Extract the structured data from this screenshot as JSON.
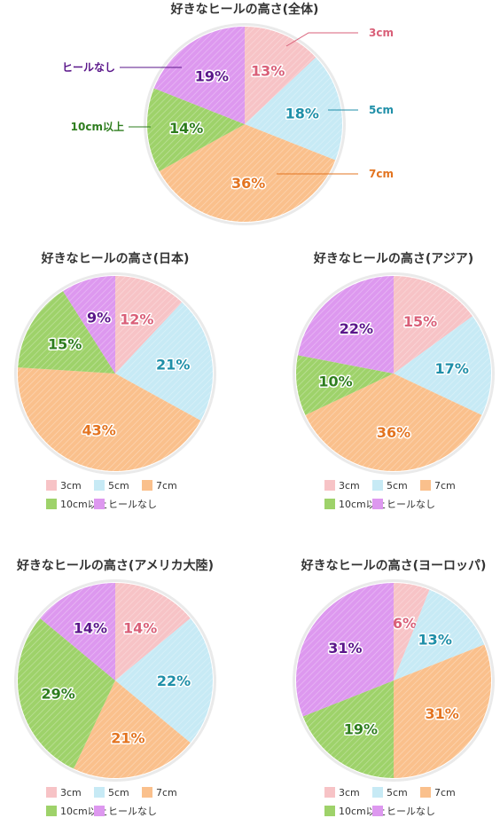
{
  "categories": [
    "3cm",
    "5cm",
    "7cm",
    "10cm以上",
    "ヒールなし"
  ],
  "colors": {
    "3cm": "#f7c3c6",
    "5cm": "#c7eaf5",
    "7cm": "#fac08c",
    "10cm以上": "#9ed26a",
    "ヒールなし": "#dd98ef"
  },
  "label_colors": {
    "3cm": "#d95f78",
    "5cm": "#1f8fa8",
    "7cm": "#e37420",
    "10cm以上": "#2e7d1e",
    "ヒールなし": "#5a168a"
  },
  "chart_data": [
    {
      "type": "pie",
      "title": "好きなヒールの高さ(全体)",
      "categories": [
        "3cm",
        "5cm",
        "7cm",
        "10cm以上",
        "ヒールなし"
      ],
      "values": [
        13,
        18,
        36,
        14,
        19
      ],
      "legend": "callouts"
    },
    {
      "type": "pie",
      "title": "好きなヒールの高さ(日本)",
      "categories": [
        "3cm",
        "5cm",
        "7cm",
        "10cm以上",
        "ヒールなし"
      ],
      "values": [
        12,
        21,
        43,
        15,
        9
      ],
      "legend": "bottom"
    },
    {
      "type": "pie",
      "title": "好きなヒールの高さ(アジア)",
      "categories": [
        "3cm",
        "5cm",
        "7cm",
        "10cm以上",
        "ヒールなし"
      ],
      "values": [
        15,
        17,
        36,
        10,
        22
      ],
      "legend": "bottom"
    },
    {
      "type": "pie",
      "title": "好きなヒールの高さ(アメリカ大陸)",
      "categories": [
        "3cm",
        "5cm",
        "7cm",
        "10cm以上",
        "ヒールなし"
      ],
      "values": [
        14,
        22,
        21,
        29,
        14
      ],
      "legend": "bottom"
    },
    {
      "type": "pie",
      "title": "好きなヒールの高さ(ヨーロッパ)",
      "categories": [
        "3cm",
        "5cm",
        "7cm",
        "10cm以上",
        "ヒールなし"
      ],
      "values": [
        6,
        13,
        31,
        19,
        31
      ],
      "legend": "bottom"
    }
  ]
}
